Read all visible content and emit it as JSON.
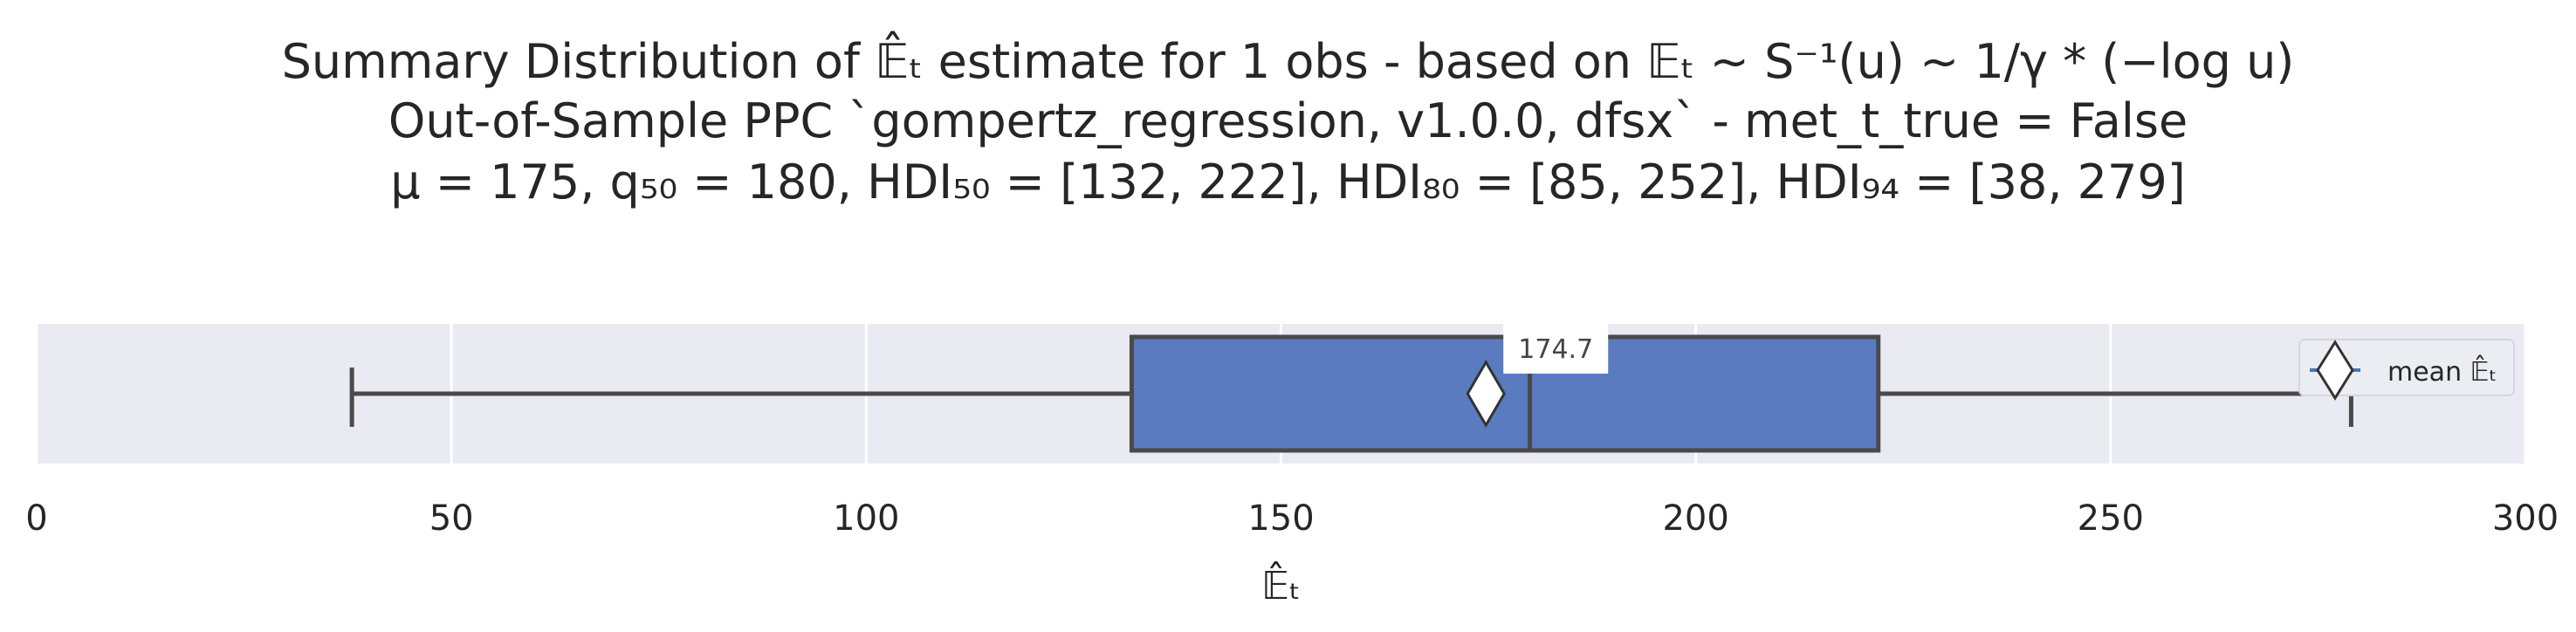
{
  "title_lines": [
    "Summary Distribution of 𝔼̂ₜ estimate for 1 obs - based on 𝔼ₜ ~ S⁻¹(u) ~ 1/γ * (−log u)",
    "Out-of-Sample PPC `gompertz_regression, v1.0.0, dfsx` - met_t_true = False",
    "μ = 175, q₅₀ = 180, HDI₅₀ = [132, 222], HDI₈₀ = [85, 252], HDI₉₄ = [38, 279]"
  ],
  "colors": {
    "background": "#eaeaf2",
    "grid": "#ffffff",
    "box_fill": "#5a7bc0",
    "box_edge": "#4a4a4a",
    "mean_marker_fill": "#ffffff",
    "legend_line": "#4a72c4",
    "text": "#262626"
  },
  "chart_data": {
    "type": "boxplot",
    "orientation": "horizontal",
    "xlabel": "𝔼̂ₜ",
    "xlim": [
      0,
      300
    ],
    "x_ticks": [
      0,
      50,
      100,
      150,
      200,
      250,
      300
    ],
    "x_tick_labels": [
      "0",
      "50",
      "100",
      "150",
      "200",
      "250",
      "300"
    ],
    "grid": true,
    "box": {
      "whisker_low": 38,
      "q1": 132,
      "median": 180,
      "q3": 222,
      "whisker_high": 279,
      "mean": 174.7
    },
    "mean_annotation": "174.7",
    "legend": {
      "position": "right",
      "entries": [
        {
          "label": "mean 𝔼̂ₜ",
          "marker": "diamond"
        }
      ]
    }
  }
}
